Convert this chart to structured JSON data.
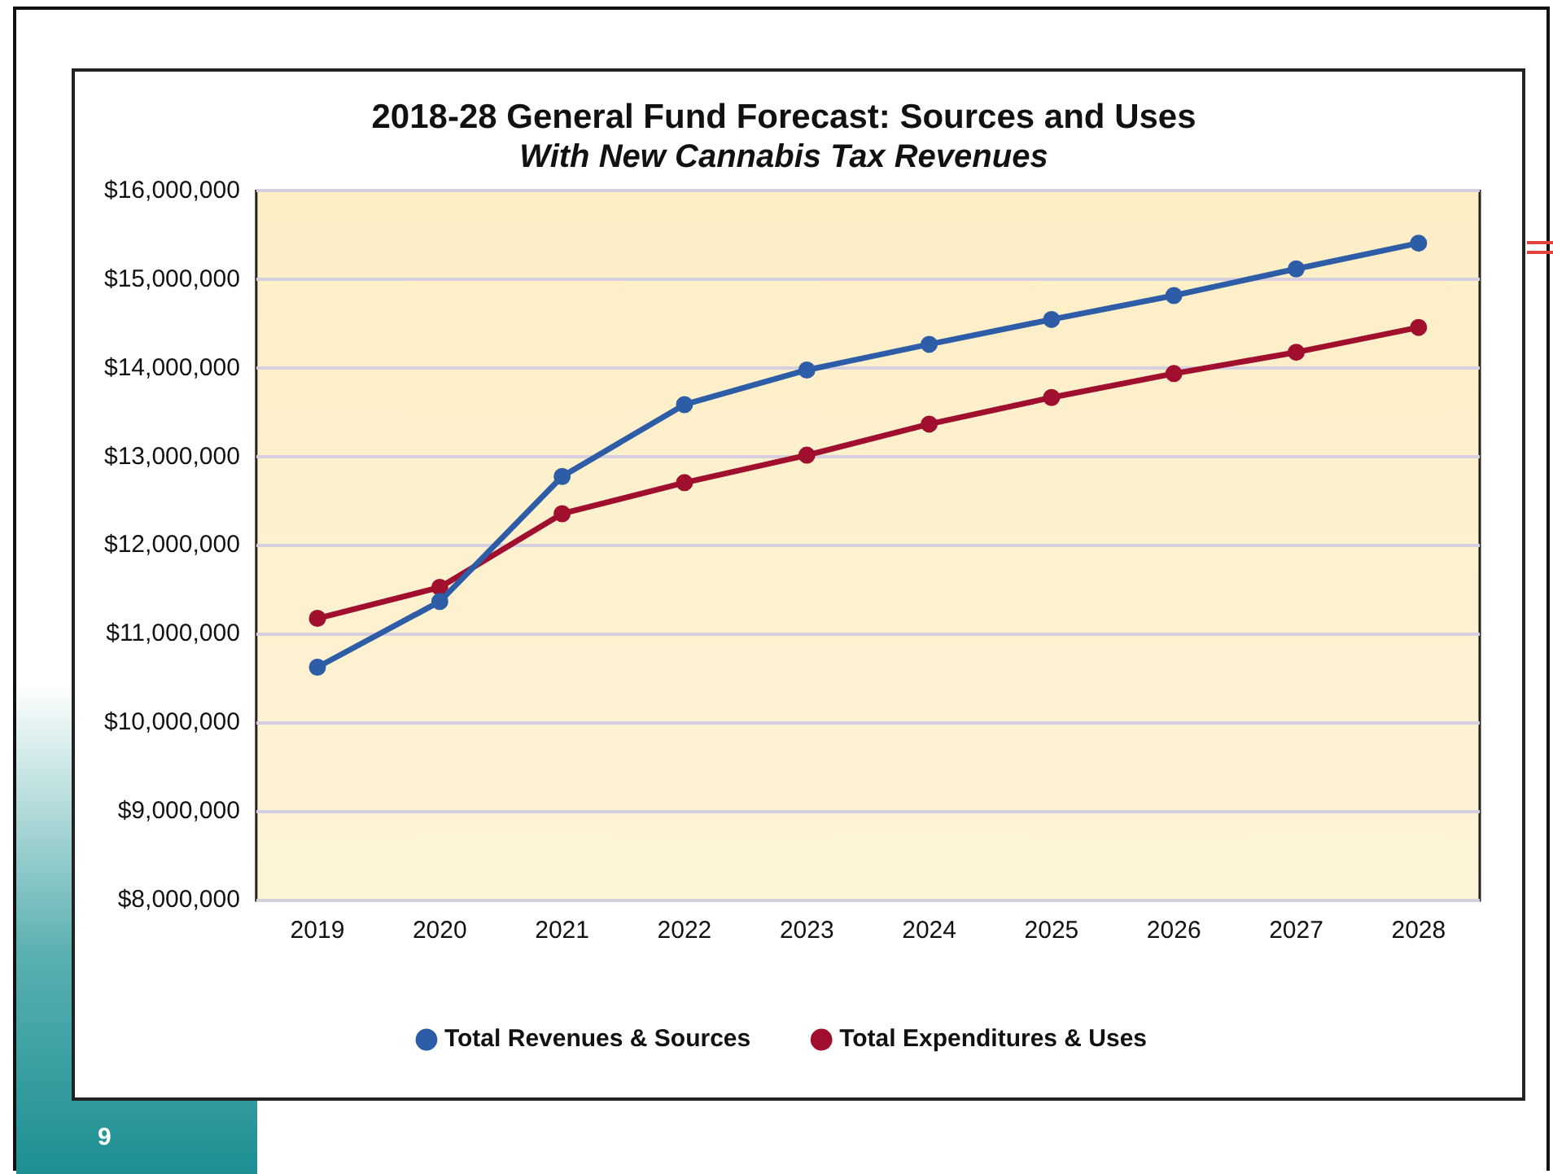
{
  "chart_data": {
    "type": "line",
    "title": "2018-28 General Fund Forecast: Sources and Uses",
    "subtitle": "With New Cannabis Tax Revenues",
    "categories": [
      "2019",
      "2020",
      "2021",
      "2022",
      "2023",
      "2024",
      "2025",
      "2026",
      "2027",
      "2028"
    ],
    "series": [
      {
        "name": "Total Revenues & Sources",
        "color": "#2e5da8",
        "values": [
          10630000,
          11370000,
          12780000,
          13590000,
          13980000,
          14270000,
          14550000,
          14820000,
          15120000,
          15410000
        ]
      },
      {
        "name": "Total Expenditures & Uses",
        "color": "#a0102e",
        "values": [
          11180000,
          11530000,
          12360000,
          12710000,
          13020000,
          13370000,
          13670000,
          13940000,
          14180000,
          14460000
        ]
      }
    ],
    "ylim": [
      8000000,
      16000000
    ],
    "yticks": [
      {
        "value": 8000000,
        "label": "$8,000,000"
      },
      {
        "value": 9000000,
        "label": "$9,000,000"
      },
      {
        "value": 10000000,
        "label": "$10,000,000"
      },
      {
        "value": 11000000,
        "label": "$11,000,000"
      },
      {
        "value": 12000000,
        "label": "$12,000,000"
      },
      {
        "value": 13000000,
        "label": "$13,000,000"
      },
      {
        "value": 14000000,
        "label": "$14,000,000"
      },
      {
        "value": 15000000,
        "label": "$15,000,000"
      },
      {
        "value": 16000000,
        "label": "$16,000,000"
      }
    ],
    "grid": "y",
    "legend": "bottom",
    "marker": "circle",
    "line_style": "solid",
    "annotations": [
      "9"
    ]
  }
}
